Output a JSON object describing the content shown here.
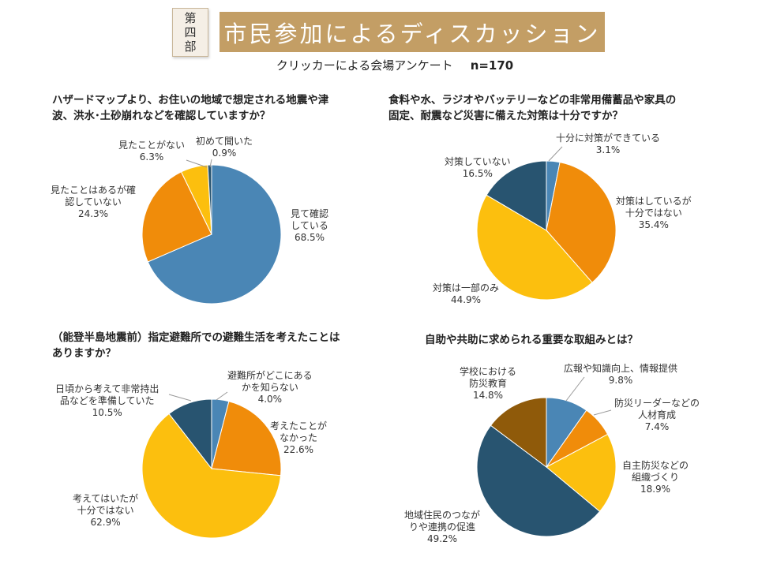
{
  "header": {
    "part_badge": [
      "第",
      "四",
      "部"
    ],
    "title": "市民参加によるディスカッション",
    "subtitle": "クリッカーによる会場アンケート",
    "sample_size": "n=170"
  },
  "colors": {
    "banner": "#c39e65",
    "blue": "#4a86b5",
    "orange": "#f08c0a",
    "yellow": "#fcbf0e",
    "navy": "#285470",
    "brown": "#8f5a0a"
  },
  "chart_data": [
    {
      "type": "pie",
      "title": "ハザードマップより、お住いの地域で想定される地震や津\n波、洪水･土砂崩れなどを確認していますか？",
      "slices": [
        {
          "label": "見て確認\nしている",
          "value": 68.5,
          "display": "68.5%",
          "color": "#4a86b5"
        },
        {
          "label": "見たことはあるが確\n認していない",
          "value": 24.3,
          "display": "24.3%",
          "color": "#f08c0a"
        },
        {
          "label": "見たことがない",
          "value": 6.3,
          "display": "6.3%",
          "color": "#fcbf0e"
        },
        {
          "label": "初めて聞いた",
          "value": 0.9,
          "display": "0.9%",
          "color": "#285470"
        }
      ]
    },
    {
      "type": "pie",
      "title": "食料や水、ラジオやバッテリーなどの非常用備蓄品や家具の\n固定、耐震など災害に備えた対策は十分ですか？",
      "slices": [
        {
          "label": "十分に対策ができている",
          "value": 3.1,
          "display": "3.1%",
          "color": "#4a86b5"
        },
        {
          "label": "対策はしているが\n十分ではない",
          "value": 35.4,
          "display": "35.4%",
          "color": "#f08c0a"
        },
        {
          "label": "対策は一部のみ",
          "value": 44.9,
          "display": "44.9%",
          "color": "#fcbf0e"
        },
        {
          "label": "対策していない",
          "value": 16.5,
          "display": "16.5%",
          "color": "#285470"
        }
      ]
    },
    {
      "type": "pie",
      "title": "（能登半島地震前）指定避難所での避難生活を考えたことは\nありますか？",
      "slices": [
        {
          "label": "避難所がどこにある\nかを知らない",
          "value": 4.0,
          "display": "4.0%",
          "color": "#4a86b5"
        },
        {
          "label": "考えたことが\nなかった",
          "value": 22.6,
          "display": "22.6%",
          "color": "#f08c0a"
        },
        {
          "label": "考えてはいたが\n十分ではない",
          "value": 62.9,
          "display": "62.9%",
          "color": "#fcbf0e"
        },
        {
          "label": "日頃から考えて非常持出\n品などを準備していた",
          "value": 10.5,
          "display": "10.5%",
          "color": "#285470"
        }
      ]
    },
    {
      "type": "pie",
      "title": "自助や共助に求められる重要な取組みとは？",
      "slices": [
        {
          "label": "広報や知識向上、情報提供",
          "value": 9.8,
          "display": "9.8%",
          "color": "#4a86b5"
        },
        {
          "label": "防災リーダーなどの\n人材育成",
          "value": 7.4,
          "display": "7.4%",
          "color": "#f08c0a"
        },
        {
          "label": "自主防災などの\n組織づくり",
          "value": 18.9,
          "display": "18.9%",
          "color": "#fcbf0e"
        },
        {
          "label": "地域住民のつなが\nりや連携の促進",
          "value": 49.2,
          "display": "49.2%",
          "color": "#285470"
        },
        {
          "label": "学校における\n防災教育",
          "value": 14.8,
          "display": "14.8%",
          "color": "#8f5a0a"
        }
      ]
    }
  ]
}
